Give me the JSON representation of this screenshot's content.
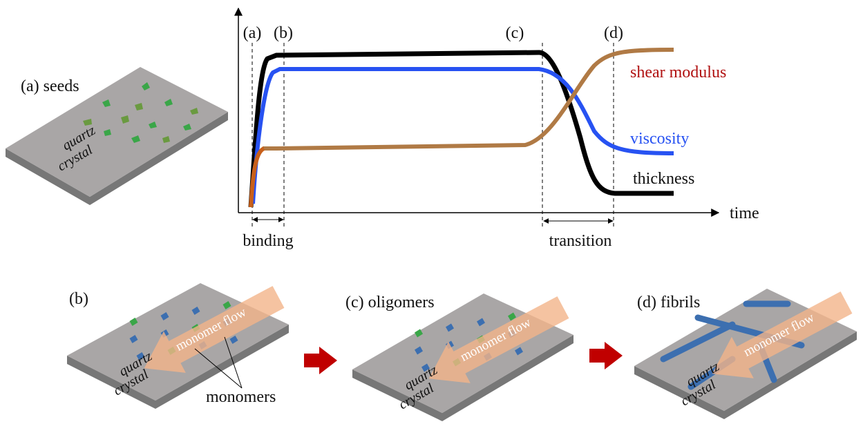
{
  "seeds_panel": {
    "label": "(a) seeds",
    "substrate": [
      "quartz",
      "crystal"
    ]
  },
  "plot": {
    "markers": [
      "(a)",
      "(b)",
      "(c)",
      "(d)"
    ],
    "curves": [
      {
        "label": "shear modulus"
      },
      {
        "label": "viscosity"
      },
      {
        "label": "thickness"
      }
    ],
    "axis_label": "time",
    "spans": [
      "binding",
      "transition"
    ]
  },
  "panels": [
    {
      "label": "(b)",
      "substrate": [
        "quartz",
        "crystal"
      ],
      "flow": "monomer flow",
      "annotation": "monomers"
    },
    {
      "label": "(c) oligomers",
      "substrate": [
        "quartz",
        "crystal"
      ],
      "flow": "monomer flow"
    },
    {
      "label": "(d) fibrils",
      "substrate": [
        "quartz",
        "crystal"
      ],
      "flow": "monomer flow"
    }
  ]
}
